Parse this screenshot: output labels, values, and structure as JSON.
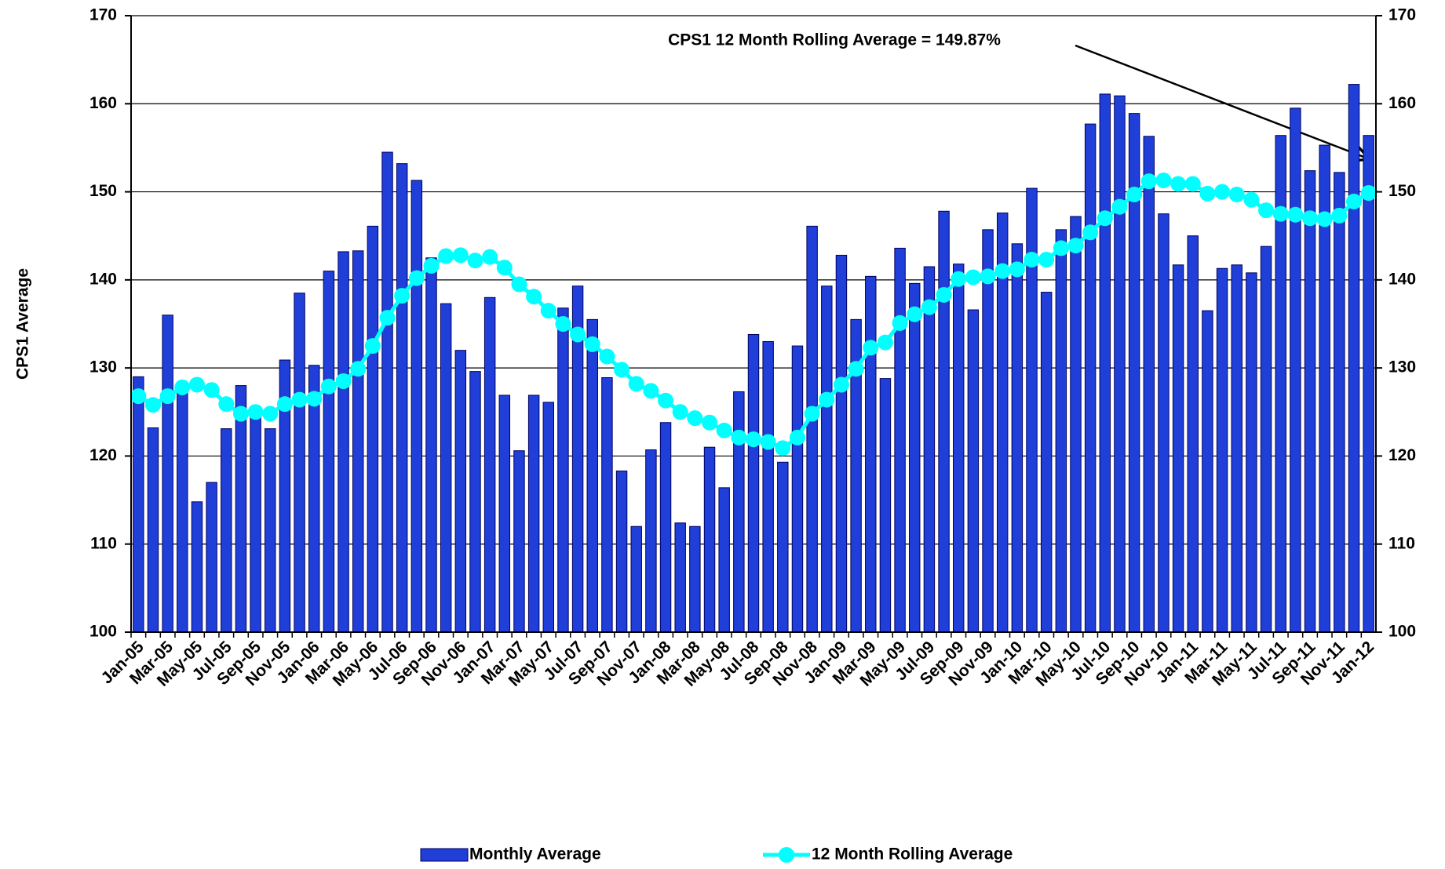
{
  "chart_data": {
    "type": "bar",
    "y_label": "CPS1 Average",
    "annotation": "CPS1 12 Month Rolling Average = 149.87%",
    "categories": [
      "Jan-05",
      null,
      "Mar-05",
      null,
      "May-05",
      null,
      "Jul-05",
      null,
      "Sep-05",
      null,
      "Nov-05",
      null,
      "Jan-06",
      null,
      "Mar-06",
      null,
      "May-06",
      null,
      "Jul-06",
      null,
      "Sep-06",
      null,
      "Nov-06",
      null,
      "Jan-07",
      null,
      "Mar-07",
      null,
      "May-07",
      null,
      "Jul-07",
      null,
      "Sep-07",
      null,
      "Nov-07",
      null,
      "Jan-08",
      null,
      "Mar-08",
      null,
      "May-08",
      null,
      "Jul-08",
      null,
      "Sep-08",
      null,
      "Nov-08",
      null,
      "Jan-09",
      null,
      "Mar-09",
      null,
      "May-09",
      null,
      "Jul-09",
      null,
      "Sep-09",
      null,
      "Nov-09",
      null,
      "Jan-10",
      null,
      "Mar-10",
      null,
      "May-10",
      null,
      "Jul-10",
      null,
      "Sep-10",
      null,
      "Nov-10",
      null,
      "Jan-11",
      null,
      "Mar-11",
      null,
      "May-11",
      null,
      "Jul-11",
      null,
      "Sep-11",
      null,
      "Nov-11",
      null,
      "Jan-12"
    ],
    "series": [
      {
        "name": "Monthly Average",
        "type": "bar",
        "color": "#1f3fd8",
        "values": [
          129,
          123.2,
          136,
          127.8,
          114.8,
          117,
          123.1,
          128,
          124.5,
          123.1,
          130.9,
          138.5,
          130.3,
          141,
          143.2,
          143.3,
          146.1,
          154.5,
          153.2,
          151.3,
          142.5,
          137.3,
          132,
          129.6,
          138,
          126.9,
          120.6,
          126.9,
          126.1,
          136.8,
          139.3,
          135.5,
          128.9,
          118.3,
          112,
          120.7,
          123.8,
          112.4,
          112,
          121,
          116.4,
          127.3,
          133.8,
          133,
          119.3,
          132.5,
          146.1,
          139.3,
          142.8,
          135.5,
          140.4,
          128.8,
          143.6,
          139.6,
          141.5,
          147.8,
          141.8,
          136.6,
          145.7,
          147.6,
          144.1,
          150.4,
          138.6,
          145.7,
          147.2,
          157.7,
          161.1,
          160.9,
          158.9,
          156.3,
          147.5,
          141.7,
          145,
          136.5,
          141.3,
          141.7,
          140.8,
          143.8,
          156.4,
          159.5,
          152.4,
          155.3,
          152.2,
          162.2,
          156.4
        ]
      },
      {
        "name": "12 Month Rolling Average",
        "type": "line",
        "color": "#00ffff",
        "values": [
          126.8,
          125.8,
          126.8,
          127.8,
          128.1,
          127.5,
          125.9,
          124.8,
          125,
          124.8,
          125.9,
          126.4,
          126.5,
          127.9,
          128.5,
          129.9,
          132.5,
          135.7,
          138.2,
          140.2,
          141.6,
          142.7,
          142.8,
          142.2,
          142.6,
          141.4,
          139.5,
          138.1,
          136.5,
          135,
          133.8,
          132.7,
          131.3,
          129.8,
          128.2,
          127.4,
          126.3,
          125,
          124.3,
          123.8,
          122.9,
          122.1,
          121.9,
          121.6,
          120.9,
          122.1,
          124.8,
          126.4,
          128.1,
          129.9,
          132.3,
          132.9,
          135.1,
          136.1,
          136.9,
          138.3,
          140.1,
          140.3,
          140.4,
          141,
          141.2,
          142.3,
          142.3,
          143.6,
          143.9,
          145.4,
          147,
          148.3,
          149.7,
          151.2,
          151.3,
          150.9,
          150.9,
          149.8,
          150,
          149.7,
          149.1,
          147.9,
          147.5,
          147.4,
          147,
          146.9,
          147.3,
          148.9,
          149.87
        ]
      }
    ],
    "ylim": [
      100,
      170
    ],
    "yticks": [
      100,
      110,
      120,
      130,
      140,
      150,
      160,
      170
    ],
    "y2lim": [
      100,
      170
    ],
    "y2ticks": [
      100,
      110,
      120,
      130,
      140,
      150,
      160,
      170
    ],
    "grid": true
  }
}
